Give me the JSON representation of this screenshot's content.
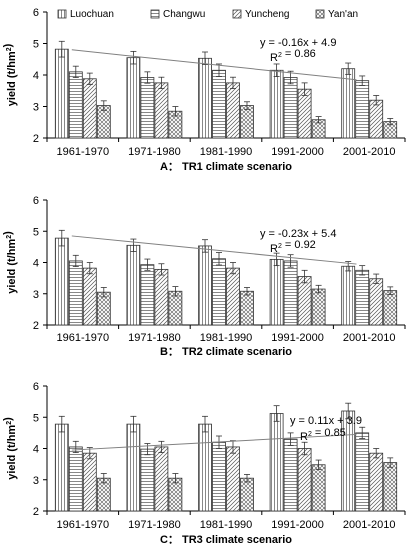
{
  "legend": {
    "items": [
      {
        "name": "Luochuan",
        "pattern": "vertical"
      },
      {
        "name": "Changwu",
        "pattern": "horizontal"
      },
      {
        "name": "Yuncheng",
        "pattern": "diagonal"
      },
      {
        "name": "Yan'an",
        "pattern": "crosshatch"
      }
    ]
  },
  "colors": {
    "bar_fill": "#ffffff",
    "bar_stroke": "#333333",
    "trend_line": "#808080",
    "axis": "#000000"
  },
  "chart_data": [
    {
      "type": "bar",
      "title": "A： TR1 climate scenario",
      "ylabel": "yield (t/hm²)",
      "xlabel": "",
      "ylim": [
        2,
        6
      ],
      "yticks": [
        "2",
        "3",
        "4",
        "5",
        "6"
      ],
      "grid": false,
      "categories": [
        "1961-1970",
        "1971-1980",
        "1981-1990",
        "1991-2000",
        "2001-2010"
      ],
      "series": [
        {
          "name": "Luochuan",
          "values": [
            4.82,
            4.55,
            4.53,
            4.15,
            4.2
          ],
          "errors": [
            0.25,
            0.2,
            0.2,
            0.2,
            0.18
          ]
        },
        {
          "name": "Changwu",
          "values": [
            4.1,
            3.92,
            4.15,
            3.92,
            3.82
          ],
          "errors": [
            0.18,
            0.18,
            0.2,
            0.2,
            0.15
          ]
        },
        {
          "name": "Yuncheng",
          "values": [
            3.88,
            3.75,
            3.75,
            3.55,
            3.2
          ],
          "errors": [
            0.18,
            0.18,
            0.18,
            0.2,
            0.15
          ]
        },
        {
          "name": "Yan'an",
          "values": [
            3.03,
            2.85,
            3.03,
            2.58,
            2.52
          ],
          "errors": [
            0.15,
            0.15,
            0.12,
            0.1,
            0.1
          ]
        }
      ],
      "trendline": {
        "start": 4.8,
        "end": 3.85
      },
      "annotation": [
        "y = -0.16x + 4.9",
        "R² = 0.86"
      ]
    },
    {
      "type": "bar",
      "title": "B： TR2 climate scenario",
      "ylabel": "yield (t/hm²)",
      "xlabel": "",
      "ylim": [
        2,
        6
      ],
      "yticks": [
        "2",
        "3",
        "4",
        "5",
        "6"
      ],
      "grid": false,
      "categories": [
        "1961-1970",
        "1971-1980",
        "1981-1990",
        "1991-2000",
        "2001-2010"
      ],
      "series": [
        {
          "name": "Luochuan",
          "values": [
            4.78,
            4.55,
            4.53,
            4.1,
            3.88
          ],
          "errors": [
            0.25,
            0.2,
            0.2,
            0.2,
            0.15
          ]
        },
        {
          "name": "Changwu",
          "values": [
            4.05,
            3.93,
            4.12,
            4.05,
            3.75
          ],
          "errors": [
            0.18,
            0.18,
            0.2,
            0.2,
            0.15
          ]
        },
        {
          "name": "Yuncheng",
          "values": [
            3.82,
            3.78,
            3.82,
            3.55,
            3.48
          ],
          "errors": [
            0.18,
            0.18,
            0.18,
            0.2,
            0.15
          ]
        },
        {
          "name": "Yan'an",
          "values": [
            3.05,
            3.08,
            3.08,
            3.15,
            3.1
          ],
          "errors": [
            0.15,
            0.15,
            0.12,
            0.12,
            0.12
          ]
        }
      ],
      "trendline": {
        "start": 4.85,
        "end": 3.95
      },
      "annotation": [
        "y = -0.23x + 5.4",
        "R² = 0.92"
      ]
    },
    {
      "type": "bar",
      "title": "C： TR3 climate scenario",
      "ylabel": "yield (t/hm²)",
      "xlabel": "",
      "ylim": [
        2,
        6
      ],
      "yticks": [
        "2",
        "3",
        "4",
        "5",
        "6"
      ],
      "grid": false,
      "categories": [
        "1961-1970",
        "1971-1980",
        "1981-1990",
        "1991-2000",
        "2001-2010"
      ],
      "series": [
        {
          "name": "Luochuan",
          "values": [
            4.78,
            4.78,
            4.78,
            5.12,
            5.2
          ],
          "errors": [
            0.25,
            0.25,
            0.25,
            0.25,
            0.25
          ]
        },
        {
          "name": "Changwu",
          "values": [
            4.05,
            3.98,
            4.2,
            4.3,
            4.5
          ],
          "errors": [
            0.18,
            0.18,
            0.2,
            0.2,
            0.18
          ]
        },
        {
          "name": "Yuncheng",
          "values": [
            3.85,
            4.05,
            4.05,
            4.0,
            3.85
          ],
          "errors": [
            0.18,
            0.18,
            0.2,
            0.2,
            0.15
          ]
        },
        {
          "name": "Yan'an",
          "values": [
            3.05,
            3.05,
            3.05,
            3.48,
            3.55
          ],
          "errors": [
            0.15,
            0.15,
            0.12,
            0.15,
            0.15
          ]
        }
      ],
      "trendline": {
        "start": 3.95,
        "end": 4.45
      },
      "annotation": [
        "y = 0.11x + 3.9",
        "R² = 0.85"
      ]
    }
  ]
}
